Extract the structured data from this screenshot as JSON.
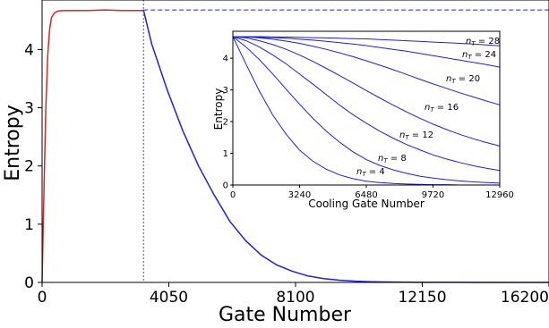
{
  "chart_data": [
    {
      "type": "line",
      "title": "",
      "xlabel": "Gate Number",
      "ylabel": "Entropy",
      "xlim": [
        0,
        16200
      ],
      "ylim": [
        0,
        4.85
      ],
      "xticks": [
        0,
        4050,
        8100,
        12150,
        16200
      ],
      "yticks": [
        0,
        1,
        2,
        3,
        4
      ],
      "grid": false,
      "vline_x": 3240,
      "reference_level": 4.68,
      "series": [
        {
          "color": "#d62728",
          "x": [
            0,
            60,
            120,
            180,
            240,
            300,
            400,
            500,
            700,
            1000,
            1500,
            2000,
            2500,
            3000,
            3240
          ],
          "y": [
            0,
            1.6,
            3.0,
            3.9,
            4.35,
            4.55,
            4.63,
            4.66,
            4.67,
            4.67,
            4.67,
            4.68,
            4.67,
            4.67,
            4.67
          ]
        },
        {
          "color": "#1f1fe0",
          "x": [
            3240,
            3500,
            4000,
            4500,
            5000,
            5500,
            6000,
            6500,
            7000,
            7500,
            8000,
            8500,
            9000,
            9500,
            10000,
            10500,
            11000,
            12000,
            13000,
            14000,
            15000,
            16200
          ],
          "y": [
            4.68,
            4.1,
            3.3,
            2.6,
            2.0,
            1.5,
            1.05,
            0.72,
            0.47,
            0.3,
            0.19,
            0.11,
            0.065,
            0.038,
            0.022,
            0.012,
            0.007,
            0.002,
            0.001,
            0,
            0,
            0
          ]
        },
        {
          "color": "#1f1fe0",
          "style": "dashed",
          "x": [
            3240,
            16200
          ],
          "y": [
            4.68,
            4.68
          ]
        }
      ]
    },
    {
      "type": "line",
      "title": "",
      "xlabel": "Cooling Gate Number",
      "ylabel": "Entropy",
      "xlim": [
        0,
        12960
      ],
      "ylim": [
        0,
        4.85
      ],
      "xticks": [
        0,
        3240,
        6480,
        9720,
        12960
      ],
      "yticks": [
        0,
        1,
        2,
        3,
        4
      ],
      "grid": false,
      "line_color": "#1f1fe0",
      "x": [
        0,
        648,
        1296,
        1944,
        2592,
        3240,
        3888,
        4536,
        5184,
        5832,
        6480,
        7128,
        7776,
        8424,
        9072,
        9720,
        10368,
        11016,
        11664,
        12312,
        12960
      ],
      "series": [
        {
          "name": "n_T = 4",
          "label": "= 4",
          "y": [
            4.68,
            3.8,
            2.95,
            2.2,
            1.6,
            1.1,
            0.75,
            0.5,
            0.32,
            0.2,
            0.12,
            0.08,
            0.05,
            0.03,
            0.02,
            0.01,
            0.01,
            0.0,
            0.0,
            0.0,
            0.0
          ]
        },
        {
          "name": "n_T = 8",
          "label": "= 8",
          "y": [
            4.68,
            4.35,
            3.95,
            3.5,
            3.02,
            2.55,
            2.1,
            1.7,
            1.35,
            1.05,
            0.8,
            0.62,
            0.48,
            0.37,
            0.28,
            0.22,
            0.17,
            0.13,
            0.1,
            0.08,
            0.06
          ]
        },
        {
          "name": "n_T = 12",
          "label": "= 12",
          "y": [
            4.68,
            4.55,
            4.35,
            4.1,
            3.82,
            3.5,
            3.18,
            2.85,
            2.52,
            2.22,
            1.95,
            1.7,
            1.48,
            1.28,
            1.11,
            0.95,
            0.82,
            0.71,
            0.61,
            0.53,
            0.46
          ]
        },
        {
          "name": "n_T = 16",
          "label": "= 16",
          "y": [
            4.68,
            4.64,
            4.55,
            4.43,
            4.28,
            4.1,
            3.9,
            3.68,
            3.45,
            3.22,
            2.98,
            2.75,
            2.52,
            2.31,
            2.11,
            1.92,
            1.75,
            1.6,
            1.46,
            1.34,
            1.23
          ]
        },
        {
          "name": "n_T = 20",
          "label": "= 20",
          "y": [
            4.68,
            4.67,
            4.64,
            4.6,
            4.54,
            4.47,
            4.38,
            4.28,
            4.17,
            4.05,
            3.92,
            3.78,
            3.64,
            3.49,
            3.34,
            3.19,
            3.05,
            2.91,
            2.78,
            2.65,
            2.53
          ]
        },
        {
          "name": "n_T = 24",
          "label": "= 24",
          "y": [
            4.68,
            4.67,
            4.66,
            4.65,
            4.63,
            4.6,
            4.57,
            4.53,
            4.49,
            4.45,
            4.4,
            4.34,
            4.28,
            4.22,
            4.15,
            4.08,
            4.01,
            3.94,
            3.87,
            3.8,
            3.72
          ]
        },
        {
          "name": "n_T = 28",
          "label": "= 28",
          "y": [
            4.68,
            4.68,
            4.68,
            4.67,
            4.67,
            4.66,
            4.65,
            4.64,
            4.63,
            4.62,
            4.61,
            4.59,
            4.57,
            4.55,
            4.53,
            4.51,
            4.49,
            4.47,
            4.45,
            4.42,
            4.39
          ]
        }
      ]
    }
  ]
}
